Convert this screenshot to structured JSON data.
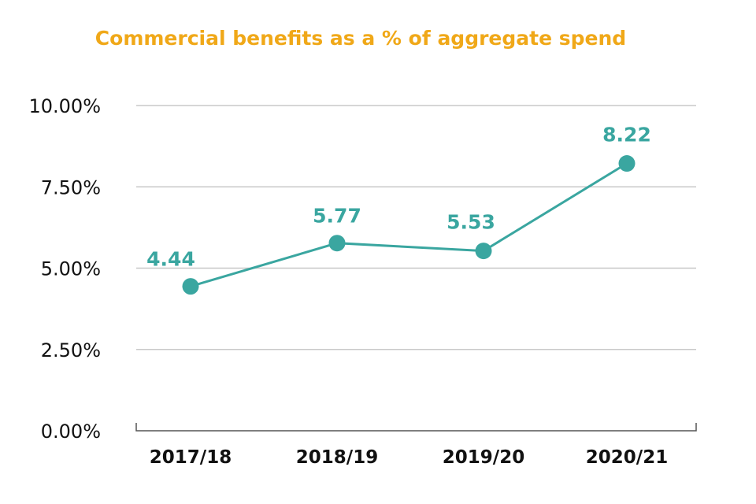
{
  "chart_data": {
    "type": "line",
    "title": "Commercial benefits as a % of aggregate spend",
    "categories": [
      "2017/18",
      "2018/19",
      "2019/20",
      "2020/21"
    ],
    "series": [
      {
        "values": [
          4.44,
          5.77,
          5.53,
          8.22
        ],
        "data_labels": [
          "4.44",
          "5.77",
          "5.53",
          "8.22"
        ]
      }
    ],
    "ylim": [
      0,
      10
    ],
    "yticks": [
      0,
      2.5,
      5,
      7.5,
      10
    ],
    "ytick_labels": [
      "0.00%",
      "2.50%",
      "5.00%",
      "7.50%",
      "10.00%"
    ],
    "grid": true,
    "colors": {
      "title": "#f0a818",
      "series": "#3aa6a0",
      "grid": "#c8c8c8",
      "axis": "#555555"
    }
  }
}
